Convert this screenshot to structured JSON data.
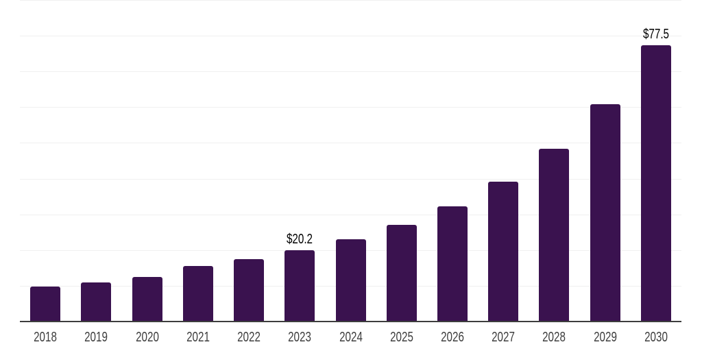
{
  "chart_data": {
    "type": "bar",
    "title": "",
    "xlabel": "",
    "ylabel": "",
    "categories": [
      "2018",
      "2019",
      "2020",
      "2021",
      "2022",
      "2023",
      "2024",
      "2025",
      "2026",
      "2027",
      "2028",
      "2029",
      "2030"
    ],
    "values": [
      10.0,
      11.1,
      12.7,
      15.8,
      17.6,
      20.2,
      23.2,
      27.2,
      32.4,
      39.3,
      48.6,
      61.0,
      77.5
    ],
    "data_labels": {
      "2023": "$20.2",
      "2030": "$77.5"
    },
    "ylim": [
      0,
      90
    ],
    "gridline_step": 10,
    "grid": "horizontal-only",
    "legend": "none",
    "bar_color": "#3a124f",
    "axis_color": "#3d3d3d",
    "gridline_color": "#f0f0f0",
    "x_label_color": "#3d3d3d",
    "data_label_color": "#000000"
  }
}
